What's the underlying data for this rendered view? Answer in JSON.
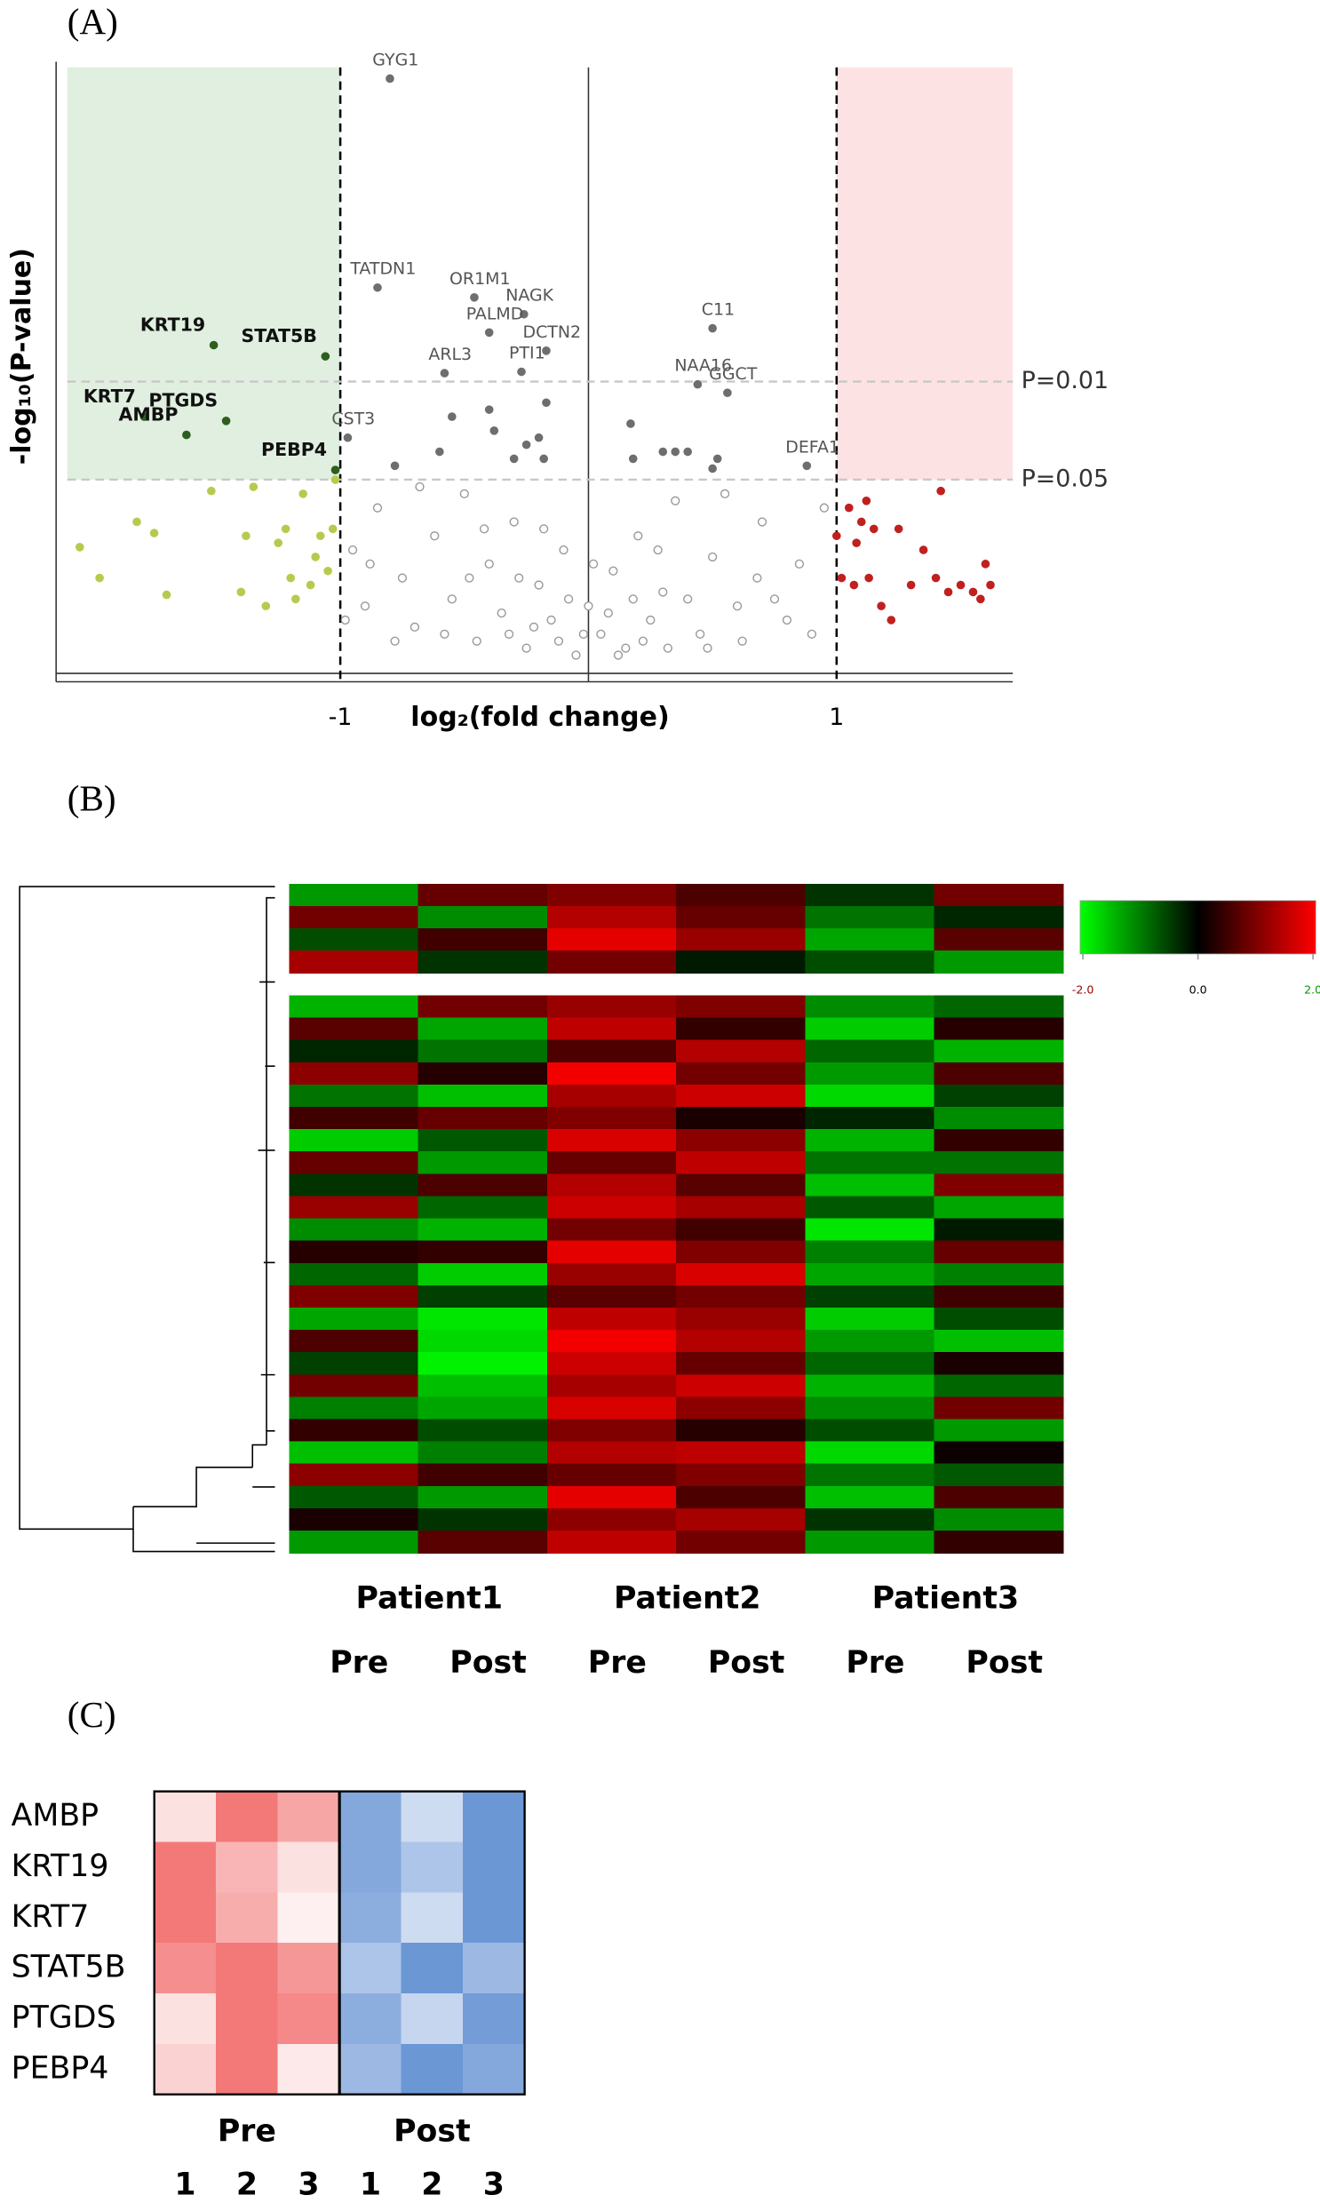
{
  "chart_data": [
    {
      "type": "scatter",
      "panel_label": "(A)",
      "x_label": "log₂(fold change)",
      "y_label": "-log₁₀(P-value)",
      "xlim": [
        -2.1,
        1.71
      ],
      "ylim": [
        -0.08,
        4.24
      ],
      "xticks": [
        -1,
        1
      ],
      "hlines": [
        {
          "value": 2,
          "label": "P=0.01"
        },
        {
          "value": 1.301,
          "label": "P=0.05"
        }
      ],
      "shade_colors": [
        "#e0efe0",
        "#fde2e4"
      ],
      "series": [
        {
          "color": "#9a9a9a",
          "filled": false,
          "x": [
            -0.95,
            -0.9,
            -0.85,
            -0.75,
            -0.7,
            -0.62,
            -0.55,
            -0.5,
            -0.45,
            -0.4,
            -0.35,
            -0.3,
            -0.25,
            -0.2,
            -0.15,
            -0.1,
            -0.05,
            0,
            0.05,
            0.1,
            0.15,
            0.2,
            0.25,
            0.3,
            0.35,
            0.45,
            0.5,
            0.6,
            0.7,
            0.8,
            -0.98,
            -0.88,
            -0.78,
            -0.68,
            -0.58,
            -0.48,
            -0.42,
            -0.32,
            -0.28,
            -0.22,
            -0.18,
            -0.12,
            -0.08,
            -0.02,
            0.02,
            0.08,
            0.12,
            0.18,
            0.22,
            0.28,
            0.32,
            0.4,
            0.48,
            0.55,
            0.62,
            0.68,
            0.75,
            0.85,
            0.9,
            0.95
          ],
          "values": [
            0.8,
            0.4,
            1.1,
            0.6,
            0.25,
            0.9,
            0.45,
            1.2,
            0.15,
            0.7,
            0.35,
            1.0,
            0.1,
            0.55,
            0.3,
            0.8,
            0.05,
            0.4,
            0.2,
            0.65,
            0.1,
            0.9,
            0.3,
            0.5,
            1.15,
            0.2,
            0.75,
            0.4,
            1.0,
            0.3,
            0.3,
            0.7,
            0.15,
            1.25,
            0.2,
            0.6,
            0.95,
            0.2,
            0.6,
            0.25,
            0.95,
            0.15,
            0.45,
            0.2,
            0.7,
            0.35,
            0.05,
            0.45,
            0.15,
            0.8,
            0.1,
            0.45,
            0.1,
            1.2,
            0.15,
            0.6,
            0.45,
            0.7,
            0.2,
            1.1
          ]
        },
        {
          "color": "#6e6e6e",
          "filled": true,
          "x": [
            -0.78,
            -0.6,
            -0.55,
            -0.4,
            -0.38,
            -0.3,
            -0.25,
            -0.18,
            -0.17,
            -0.2,
            0.17,
            0.18,
            0.3,
            0.35,
            0.4,
            0.52,
            0.5
          ],
          "values": [
            1.4,
            1.5,
            1.75,
            1.8,
            1.65,
            1.45,
            1.55,
            1.45,
            1.85,
            1.6,
            1.7,
            1.45,
            1.5,
            1.5,
            1.5,
            1.45,
            1.38
          ]
        },
        {
          "color": "#6e6e6e",
          "filled": true,
          "label_color": "#555555",
          "label_weight": "normal",
          "x": [
            -0.8,
            -0.85,
            -0.46,
            -0.26,
            -0.4,
            -0.17,
            -0.58,
            -0.27,
            0.5,
            0.44,
            0.56,
            0.88,
            -0.97
          ],
          "values": [
            4.16,
            2.67,
            2.6,
            2.48,
            2.35,
            2.22,
            2.06,
            2.07,
            2.38,
            1.98,
            1.92,
            1.4,
            1.6
          ],
          "labels": [
            "GYG1",
            "TATDN1",
            "OR1M1",
            "NAGK",
            "PALMD",
            "DCTN2",
            "ARL3",
            "PTI1",
            "C11",
            "NAA16",
            "GGCT",
            "DEFA1",
            "CST3"
          ]
        },
        {
          "color": "#b8c94e",
          "filled": true,
          "x": [
            -2.05,
            -1.82,
            -1.75,
            -1.7,
            -1.52,
            -1.35,
            -1.38,
            -1.4,
            -1.25,
            -1.22,
            -1.2,
            -1.18,
            -1.15,
            -1.12,
            -1.1,
            -1.08,
            -1.05,
            -1.03,
            -1.02,
            -1.3,
            -1.97
          ],
          "values": [
            0.82,
            1.0,
            0.92,
            0.48,
            1.22,
            1.25,
            0.9,
            0.5,
            0.85,
            0.95,
            0.6,
            0.45,
            1.2,
            0.55,
            0.75,
            0.9,
            0.65,
            0.95,
            1.3,
            0.4,
            0.6
          ]
        },
        {
          "color": "#2d5e1e",
          "filled": true,
          "label_color": "#111111",
          "label_weight": "bold",
          "x": [
            -1.51,
            -1.06,
            -1.79,
            -1.46,
            -1.62,
            -1.02
          ],
          "values": [
            2.26,
            2.18,
            1.75,
            1.72,
            1.62,
            1.37
          ],
          "labels": [
            "KRT19",
            "STAT5B",
            "KRT7",
            "PTGDS",
            "AMBP",
            "PEBP4"
          ]
        },
        {
          "color": "#c0201f",
          "filled": true,
          "x": [
            1.0,
            1.02,
            1.05,
            1.07,
            1.08,
            1.1,
            1.12,
            1.13,
            1.15,
            1.22,
            1.3,
            1.35,
            1.4,
            1.45,
            1.5,
            1.55,
            1.58,
            1.6,
            1.62,
            1.25,
            1.42,
            1.18
          ],
          "values": [
            0.9,
            0.6,
            1.1,
            0.55,
            0.85,
            1.0,
            1.15,
            0.6,
            0.95,
            0.3,
            0.55,
            0.8,
            0.6,
            0.5,
            0.55,
            0.5,
            0.45,
            0.7,
            0.55,
            0.95,
            1.22,
            0.4
          ]
        }
      ]
    },
    {
      "type": "heatmap",
      "panel_label": "(B)",
      "groups": [
        "Patient1",
        "Patient2",
        "Patient3"
      ],
      "columns": [
        "Pre",
        "Post",
        "Pre",
        "Post",
        "Pre",
        "Post"
      ],
      "colors": [
        "#00ff00",
        "#000000",
        "#ff0000"
      ],
      "zlim": [
        -2,
        2
      ],
      "colorbar_ticks": [
        {
          "value": -2,
          "label": "-2.0"
        },
        {
          "value": 0,
          "label": "0.0"
        },
        {
          "value": 2,
          "label": "2.0"
        }
      ],
      "values": [
        [
          -1.2,
          0.8,
          1.0,
          0.6,
          -0.4,
          0.9
        ],
        [
          0.9,
          -1.1,
          1.4,
          0.8,
          -0.9,
          -0.3
        ],
        [
          -0.6,
          0.5,
          1.8,
          1.2,
          -1.3,
          0.7
        ],
        [
          1.3,
          -0.4,
          0.9,
          -0.2,
          -0.6,
          -1.2
        ],
        [
          null,
          null,
          null,
          null,
          null,
          null
        ],
        [
          -1.4,
          0.9,
          1.2,
          1.0,
          -1.1,
          -0.8
        ],
        [
          0.7,
          -1.3,
          1.5,
          0.4,
          -1.6,
          0.3
        ],
        [
          -0.3,
          -0.9,
          0.6,
          1.4,
          -0.8,
          -1.4
        ],
        [
          1.1,
          0.3,
          1.9,
          0.9,
          -1.2,
          0.6
        ],
        [
          -0.9,
          -1.5,
          1.3,
          1.6,
          -1.7,
          -0.5
        ],
        [
          0.5,
          0.8,
          1.0,
          0.2,
          -0.3,
          -1.1
        ],
        [
          -1.6,
          -0.7,
          1.7,
          1.1,
          -1.4,
          0.4
        ],
        [
          0.8,
          -1.2,
          0.8,
          1.5,
          -0.9,
          -0.9
        ],
        [
          -0.4,
          0.6,
          1.4,
          0.7,
          -1.5,
          1.0
        ],
        [
          1.2,
          -0.8,
          1.6,
          1.3,
          -0.7,
          -1.3
        ],
        [
          -1.1,
          -1.4,
          0.9,
          0.5,
          -1.8,
          -0.2
        ],
        [
          0.3,
          0.4,
          1.8,
          1.0,
          -1.0,
          0.8
        ],
        [
          -0.8,
          -1.6,
          1.2,
          1.7,
          -1.3,
          -1.0
        ],
        [
          1.0,
          -0.5,
          0.7,
          0.9,
          -0.5,
          0.5
        ],
        [
          -1.3,
          -1.8,
          1.5,
          1.2,
          -1.6,
          -0.6
        ],
        [
          0.6,
          -1.7,
          1.9,
          1.4,
          -1.2,
          -1.5
        ],
        [
          -0.5,
          -1.9,
          1.6,
          0.8,
          -0.8,
          0.2
        ],
        [
          0.9,
          -1.5,
          1.3,
          1.6,
          -1.4,
          -0.8
        ],
        [
          -1.0,
          -1.3,
          1.7,
          1.1,
          -1.1,
          0.9
        ],
        [
          0.4,
          -0.6,
          1.0,
          0.3,
          -0.6,
          -1.2
        ],
        [
          -1.5,
          -1.0,
          1.4,
          1.5,
          -1.7,
          0.1
        ],
        [
          1.1,
          0.5,
          0.8,
          1.0,
          -0.9,
          -0.7
        ],
        [
          -0.7,
          -1.2,
          1.8,
          0.6,
          -1.5,
          0.6
        ],
        [
          0.2,
          -0.4,
          1.1,
          1.3,
          -0.4,
          -1.1
        ],
        [
          -1.2,
          0.7,
          1.5,
          0.9,
          -1.2,
          0.4
        ]
      ]
    },
    {
      "type": "heatmap",
      "panel_label": "(C)",
      "rows": [
        "AMBP",
        "KRT19",
        "KRT7",
        "STAT5B",
        "PTGDS",
        "PEBP4"
      ],
      "groups": [
        "Pre",
        "Post"
      ],
      "columns": [
        "1",
        "2",
        "3",
        "1",
        "2",
        "3"
      ],
      "colors": [
        "#5b8bd0",
        "#ffffff",
        "#f26a6a"
      ],
      "zlim": [
        -2,
        2
      ],
      "values": [
        [
          0.4,
          1.8,
          1.2,
          -1.5,
          -0.6,
          -1.8
        ],
        [
          1.8,
          1.0,
          0.4,
          -1.5,
          -1.0,
          -1.8
        ],
        [
          1.8,
          1.1,
          0.2,
          -1.4,
          -0.6,
          -1.8
        ],
        [
          1.5,
          1.8,
          1.4,
          -1.0,
          -1.8,
          -1.2
        ],
        [
          0.4,
          1.8,
          1.6,
          -1.4,
          -0.7,
          -1.7
        ],
        [
          0.6,
          1.8,
          0.3,
          -1.2,
          -1.8,
          -1.5
        ]
      ]
    }
  ]
}
